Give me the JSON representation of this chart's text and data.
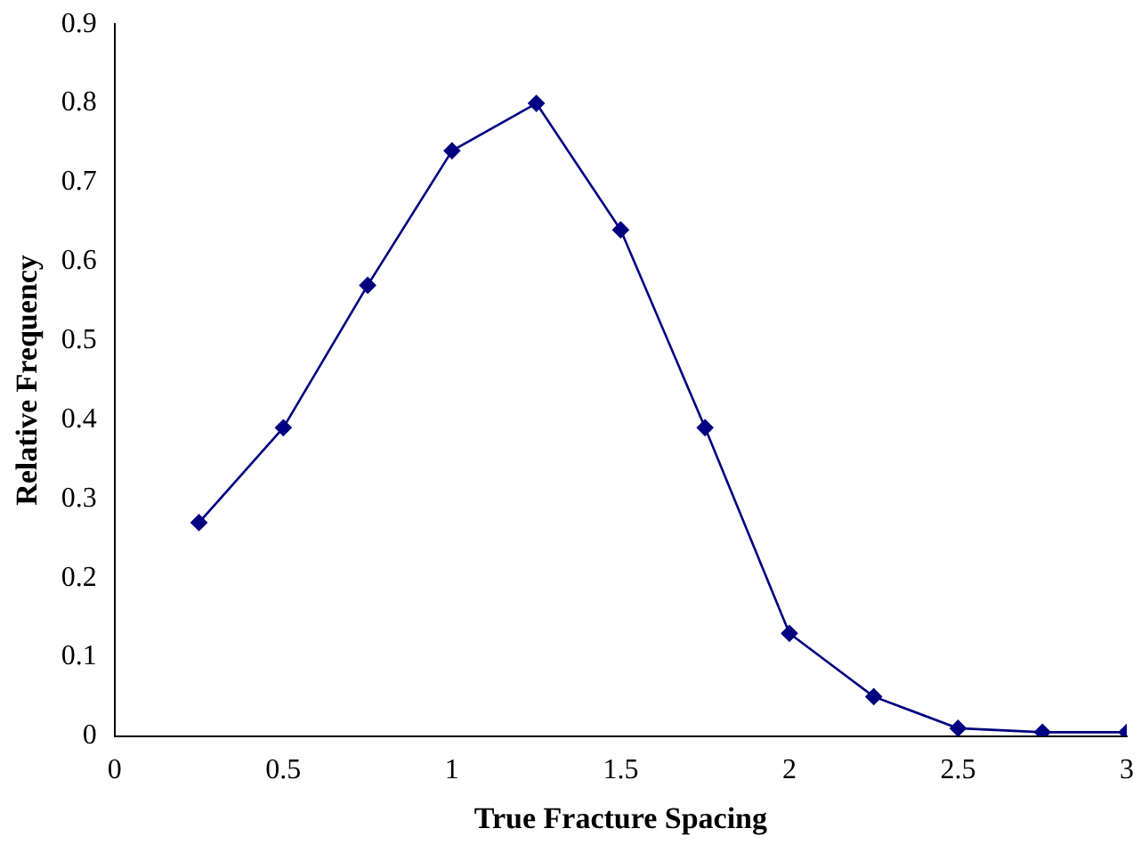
{
  "chart_data": {
    "type": "line",
    "xlabel": "True Fracture Spacing",
    "ylabel": "Relative Frequency",
    "x": [
      0.25,
      0.5,
      0.75,
      1,
      1.25,
      1.5,
      1.75,
      2,
      2.25,
      2.5,
      2.75,
      3
    ],
    "series": [
      {
        "color": "#000080",
        "values": [
          0.27,
          0.39,
          0.57,
          0.74,
          0.8,
          0.64,
          0.39,
          0.13,
          0.05,
          0.01,
          0.005,
          0.005
        ]
      }
    ],
    "xlim": [
      0,
      3
    ],
    "xticks": [
      0,
      0.5,
      1,
      1.5,
      2,
      2.5,
      3
    ],
    "ylim": [
      0,
      0.9
    ],
    "yticks": [
      0,
      0.1,
      0.2,
      0.3,
      0.4,
      0.5,
      0.6,
      0.7,
      0.8,
      0.9
    ],
    "grid": false,
    "legend": false,
    "marker": "diamond",
    "line_style": "solid"
  }
}
